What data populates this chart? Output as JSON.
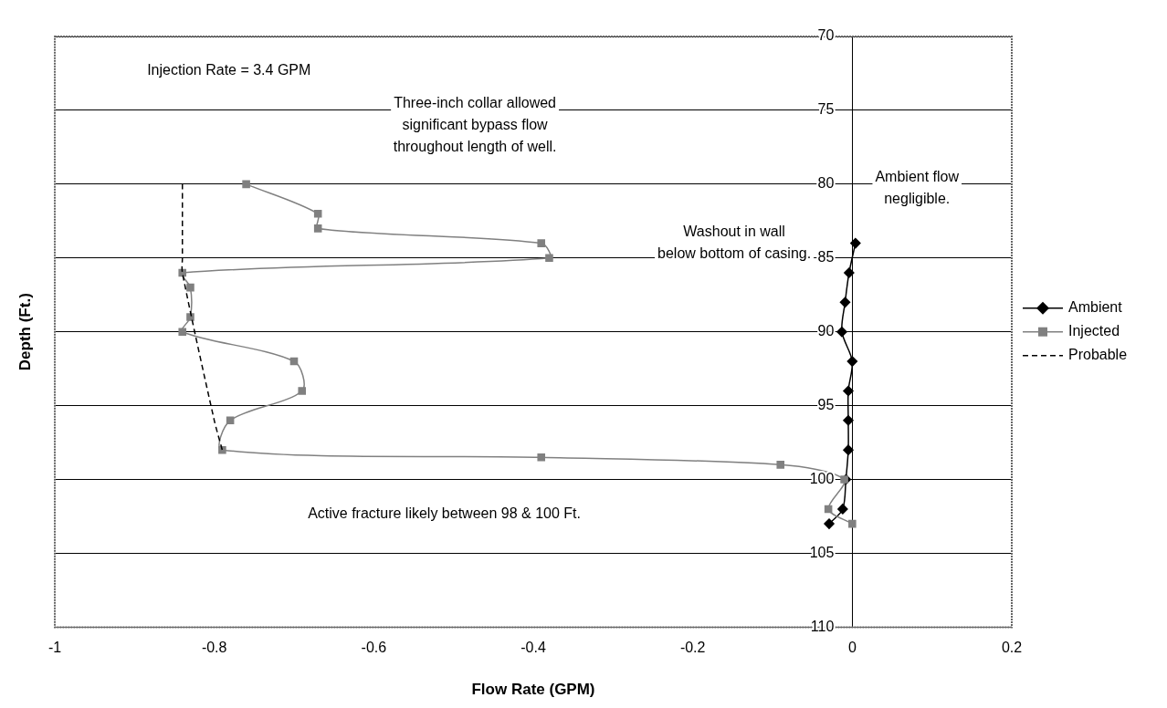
{
  "chart_data": {
    "type": "line",
    "xlabel": "Flow Rate (GPM)",
    "ylabel": "Depth (Ft.)",
    "xlim": [
      -1,
      0.2
    ],
    "xticks": [
      -1,
      -0.8,
      -0.6,
      -0.4,
      -0.2,
      0,
      0.2
    ],
    "ylim": [
      110,
      70
    ],
    "yticks": [
      70,
      75,
      80,
      85,
      90,
      95,
      100,
      105,
      110
    ],
    "grid": "y",
    "legend": "right",
    "series": [
      {
        "name": "Ambient",
        "color": "#000000",
        "marker": "diamond",
        "line_style": "solid",
        "x": [
          0.004,
          -0.004,
          -0.009,
          -0.013,
          0,
          -0.005,
          -0.005,
          -0.005,
          -0.008,
          -0.012,
          -0.029
        ],
        "values": [
          84,
          86,
          88,
          90,
          92,
          94,
          96,
          98,
          100,
          102,
          103
        ]
      },
      {
        "name": "Injected",
        "color": "#808080",
        "marker": "square",
        "line_style": "solid",
        "x": [
          -0.76,
          -0.67,
          -0.67,
          -0.39,
          -0.38,
          -0.84,
          -0.83,
          -0.83,
          -0.84,
          -0.7,
          -0.69,
          -0.78,
          -0.79,
          -0.39,
          -0.09,
          -0.01,
          -0.03,
          0
        ],
        "values": [
          80,
          82,
          83,
          84,
          85,
          86,
          87,
          89,
          90,
          92,
          94,
          96,
          98,
          98.5,
          99,
          100,
          102,
          103
        ]
      },
      {
        "name": "Probable",
        "color": "#000000",
        "marker": "none",
        "line_style": "dashed",
        "x": [
          -0.84,
          -0.84,
          -0.84,
          -0.8,
          -0.79
        ],
        "values": [
          80,
          85,
          86,
          96,
          98
        ]
      }
    ],
    "annotations": [
      "Injection Rate = 3.4 GPM",
      "Three-inch collar allowed\nsignificant bypass flow\nthroughout length of well.",
      "Ambient flow\nnegligible.",
      "Washout in wall\nbelow bottom of casing.",
      "Active fracture likely between 98 & 100 Ft."
    ]
  }
}
